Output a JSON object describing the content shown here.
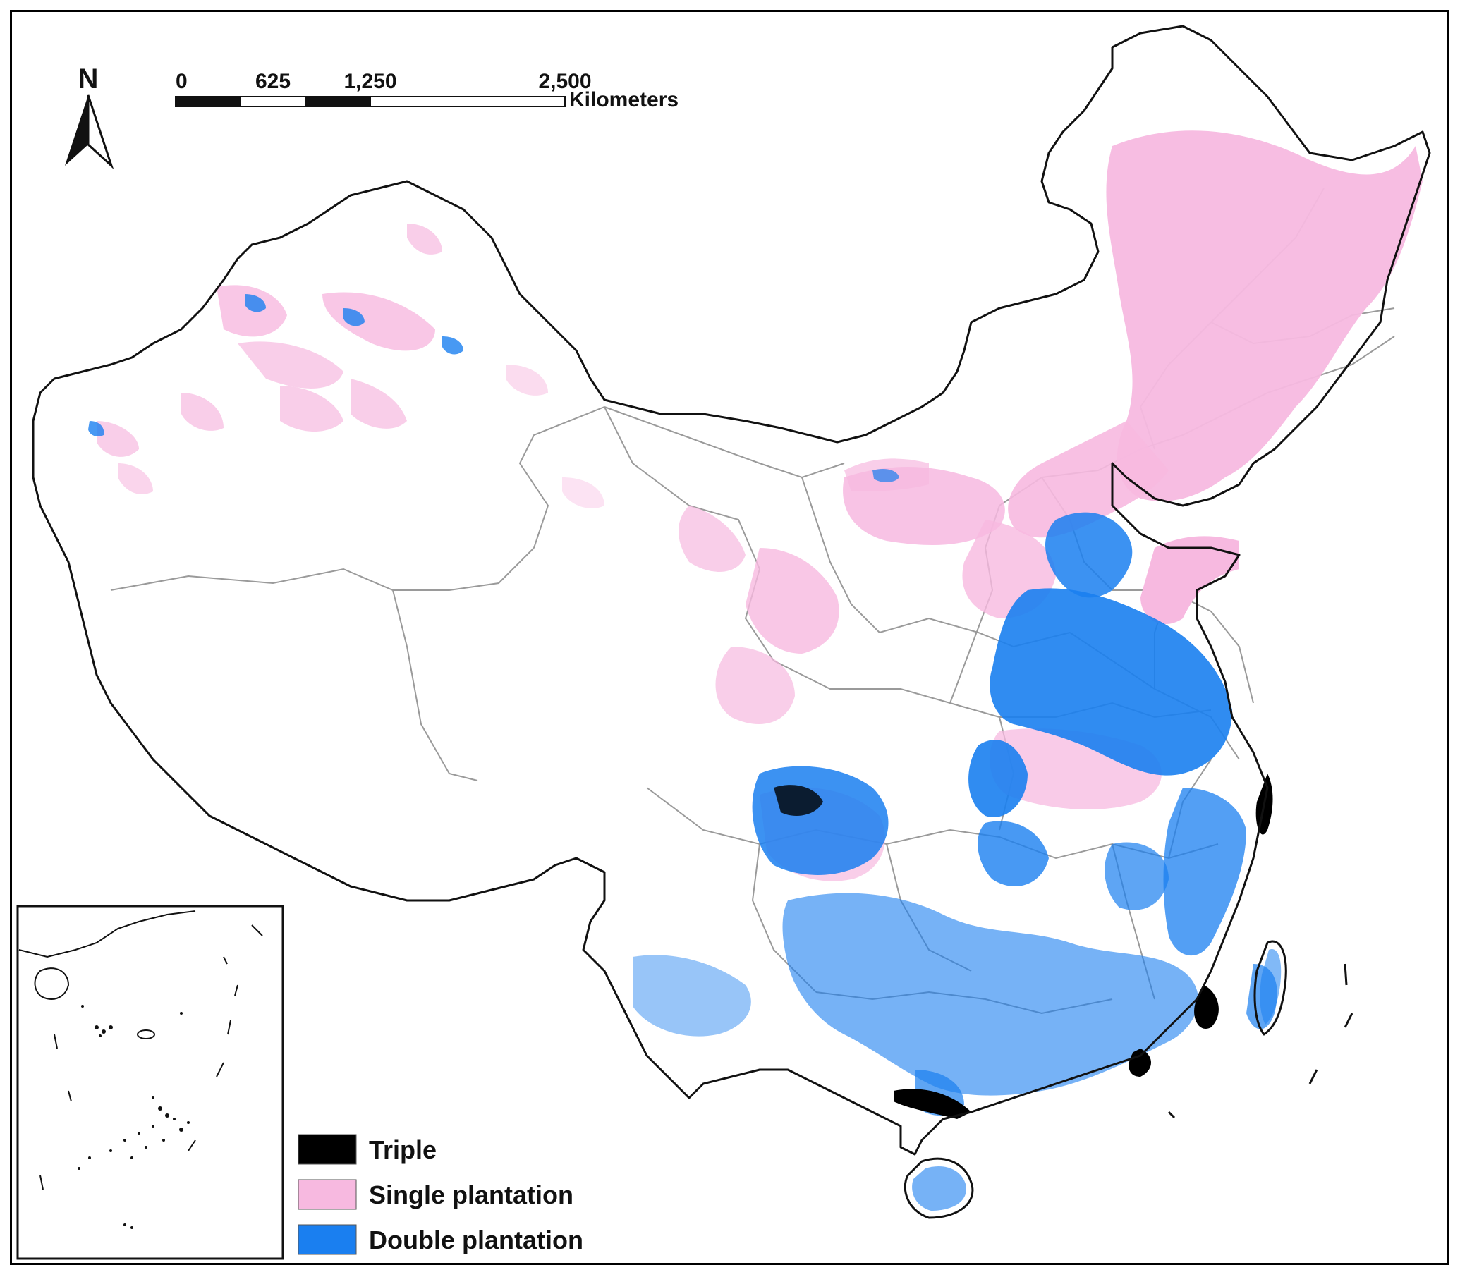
{
  "north_arrow": {
    "label": "N"
  },
  "scale_bar": {
    "ticks": [
      "0",
      "625",
      "1,250",
      "2,500"
    ],
    "tick_values": [
      0,
      625,
      1250,
      2500
    ],
    "unit": "Kilometers"
  },
  "legend": {
    "items": [
      {
        "label": "Triple",
        "color": "#000000"
      },
      {
        "label": "Single plantation",
        "color": "#f7b9e0"
      },
      {
        "label": "Double plantation",
        "color": "#1a7ff0"
      }
    ]
  },
  "colors": {
    "border": "#111111",
    "province_lines": "#9a9a9a",
    "single": "#f7b9e0",
    "double": "#1a7ff0",
    "triple": "#000000"
  }
}
